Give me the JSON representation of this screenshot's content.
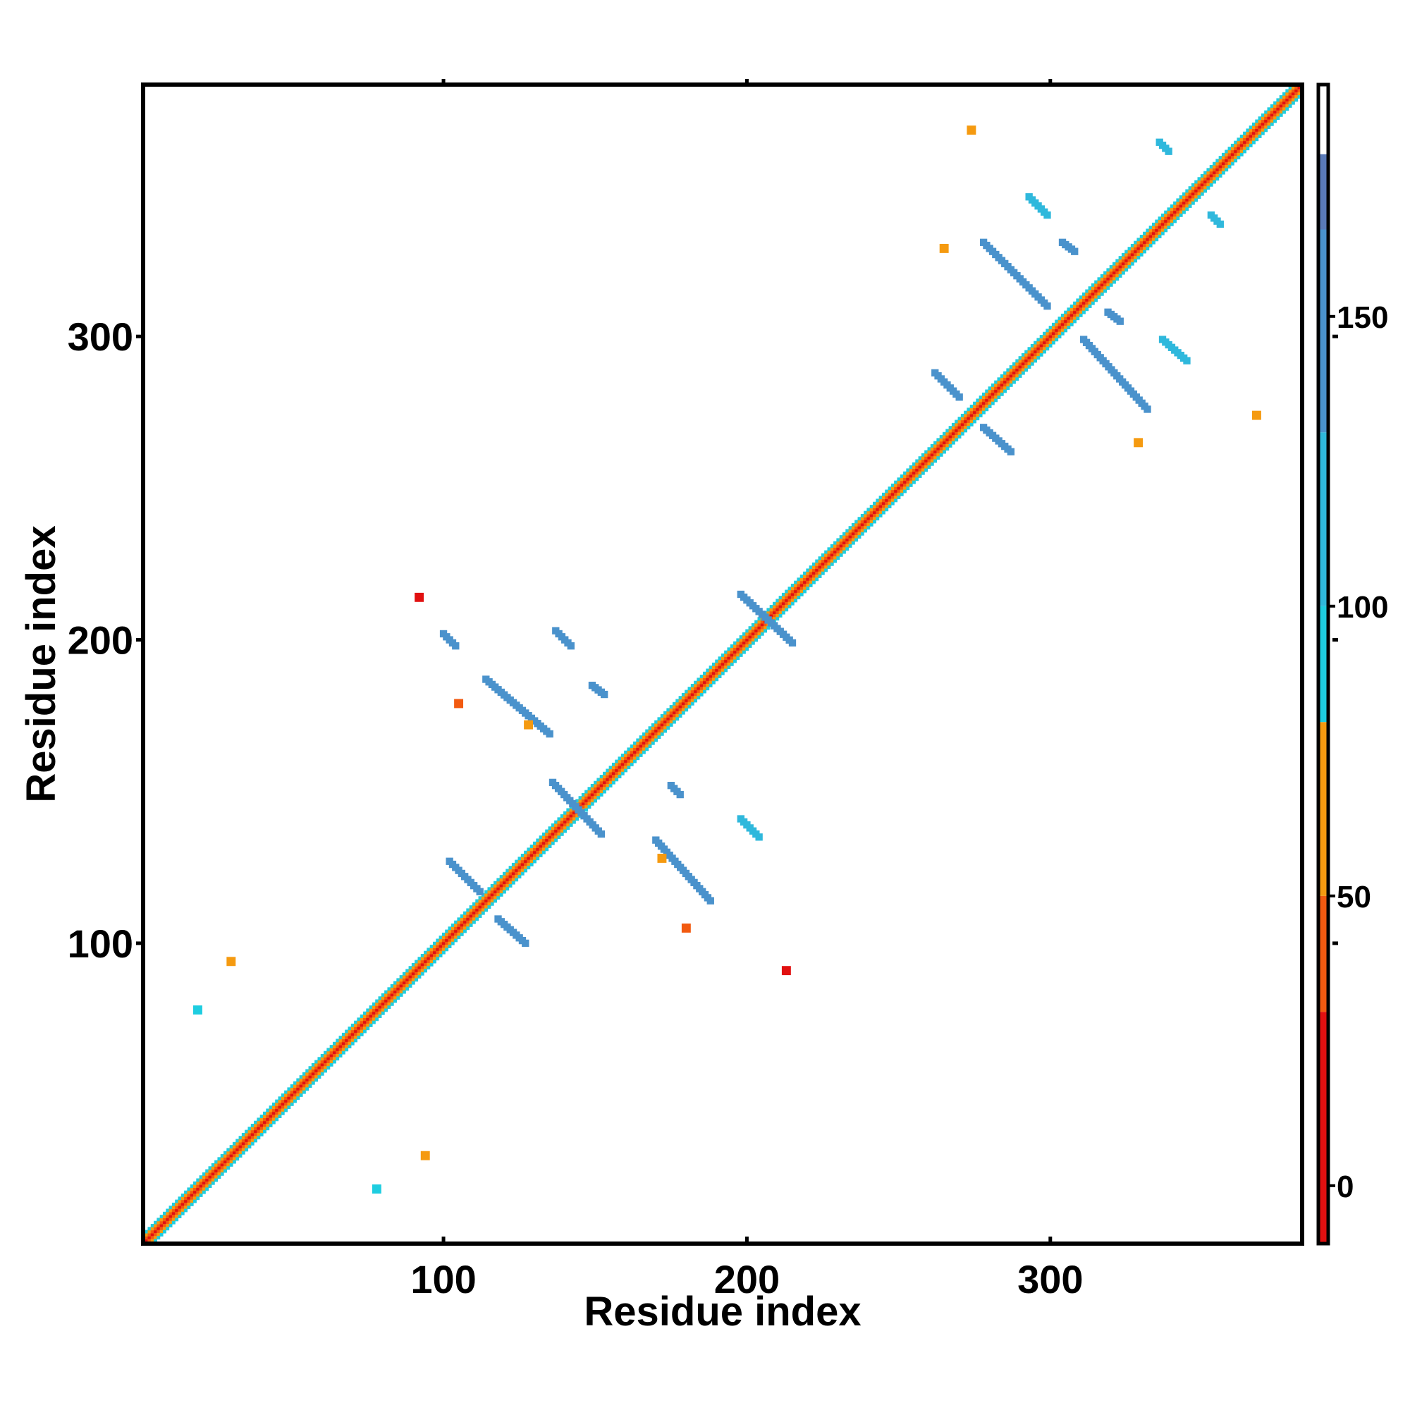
{
  "chart_data": {
    "type": "heatmap",
    "title": "",
    "xlabel": "Residue index",
    "ylabel": "Residue index",
    "xlim": [
      1,
      383
    ],
    "ylim": [
      1,
      383
    ],
    "xticks": [
      100,
      200,
      300
    ],
    "yticks": [
      100,
      200,
      300
    ],
    "colorbar": {
      "range": [
        -10,
        190
      ],
      "ticks": [
        0,
        50,
        100,
        150
      ],
      "bands": [
        {
          "from": -10,
          "to": 30,
          "color": "#e11010"
        },
        {
          "from": 30,
          "to": 50,
          "color": "#f25a10"
        },
        {
          "from": 50,
          "to": 80,
          "color": "#f59a10"
        },
        {
          "from": 80,
          "to": 100,
          "color": "#1ecde0"
        },
        {
          "from": 100,
          "to": 130,
          "color": "#2fb8dc"
        },
        {
          "from": 130,
          "to": 165,
          "color": "#4a92cc"
        },
        {
          "from": 165,
          "to": 178,
          "color": "#5a7ab8"
        },
        {
          "from": 178,
          "to": 190,
          "color": "#ffffff"
        }
      ]
    },
    "diagonal": {
      "from": 1,
      "to": 383,
      "value": 0
    },
    "contact_bands": [
      {
        "x1": 102,
        "y1": 127,
        "x2": 112,
        "y2": 117,
        "value": 160
      },
      {
        "x1": 118,
        "y1": 108,
        "x2": 127,
        "y2": 100,
        "value": 160
      },
      {
        "x1": 136,
        "y1": 153,
        "x2": 152,
        "y2": 136,
        "value": 160
      },
      {
        "x1": 170,
        "y1": 134,
        "x2": 188,
        "y2": 114,
        "value": 160
      },
      {
        "x1": 198,
        "y1": 141,
        "x2": 204,
        "y2": 135,
        "value": 120
      },
      {
        "x1": 114,
        "y1": 187,
        "x2": 135,
        "y2": 169,
        "value": 160
      },
      {
        "x1": 137,
        "y1": 203,
        "x2": 142,
        "y2": 198,
        "value": 160
      },
      {
        "x1": 198,
        "y1": 215,
        "x2": 215,
        "y2": 199,
        "value": 160
      },
      {
        "x1": 262,
        "y1": 288,
        "x2": 270,
        "y2": 280,
        "value": 160
      },
      {
        "x1": 278,
        "y1": 270,
        "x2": 287,
        "y2": 262,
        "value": 160
      },
      {
        "x1": 278,
        "y1": 331,
        "x2": 299,
        "y2": 310,
        "value": 160
      },
      {
        "x1": 311,
        "y1": 299,
        "x2": 332,
        "y2": 276,
        "value": 160
      },
      {
        "x1": 293,
        "y1": 346,
        "x2": 299,
        "y2": 340,
        "value": 120
      },
      {
        "x1": 337,
        "y1": 299,
        "x2": 345,
        "y2": 292,
        "value": 120
      },
      {
        "x1": 175,
        "y1": 152,
        "x2": 178,
        "y2": 149,
        "value": 160
      },
      {
        "x1": 149,
        "y1": 185,
        "x2": 153,
        "y2": 182,
        "value": 160
      },
      {
        "x1": 100,
        "y1": 202,
        "x2": 104,
        "y2": 198,
        "value": 160
      },
      {
        "x1": 304,
        "y1": 331,
        "x2": 308,
        "y2": 328,
        "value": 160
      },
      {
        "x1": 319,
        "y1": 308,
        "x2": 323,
        "y2": 305,
        "value": 160
      },
      {
        "x1": 336,
        "y1": 364,
        "x2": 339,
        "y2": 361,
        "value": 120
      },
      {
        "x1": 353,
        "y1": 340,
        "x2": 356,
        "y2": 337,
        "value": 120
      }
    ],
    "contact_spots": [
      {
        "x": 92,
        "y": 214,
        "value": 0
      },
      {
        "x": 213,
        "y": 91,
        "value": 0
      },
      {
        "x": 105,
        "y": 179,
        "value": 40
      },
      {
        "x": 180,
        "y": 105,
        "value": 40
      },
      {
        "x": 128,
        "y": 172,
        "value": 60
      },
      {
        "x": 172,
        "y": 128,
        "value": 60
      },
      {
        "x": 274,
        "y": 368,
        "value": 60
      },
      {
        "x": 368,
        "y": 274,
        "value": 60
      },
      {
        "x": 265,
        "y": 329,
        "value": 60
      },
      {
        "x": 329,
        "y": 265,
        "value": 60
      },
      {
        "x": 30,
        "y": 94,
        "value": 60
      },
      {
        "x": 94,
        "y": 30,
        "value": 60
      },
      {
        "x": 19,
        "y": 78,
        "value": 90
      },
      {
        "x": 78,
        "y": 19,
        "value": 90
      }
    ]
  }
}
